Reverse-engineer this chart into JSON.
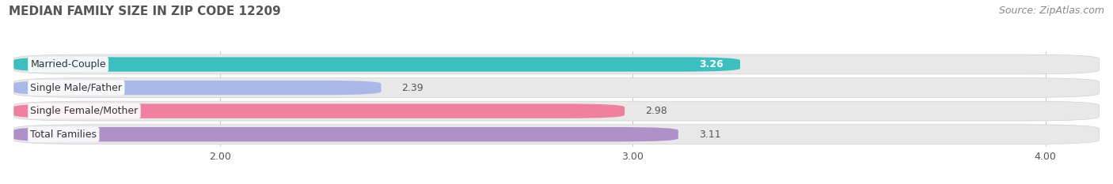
{
  "title": "MEDIAN FAMILY SIZE IN ZIP CODE 12209",
  "source": "Source: ZipAtlas.com",
  "categories": [
    "Married-Couple",
    "Single Male/Father",
    "Single Female/Mother",
    "Total Families"
  ],
  "values": [
    3.26,
    2.39,
    2.98,
    3.11
  ],
  "colors": [
    "#3dbfbf",
    "#aab8e8",
    "#f080a0",
    "#b090c8"
  ],
  "bar_bg_color": "#e8e8e8",
  "bar_border_color": "#d0d0d0",
  "xlim_min": 1.48,
  "xlim_max": 4.15,
  "xticks": [
    2.0,
    3.0,
    4.0
  ],
  "xtick_labels": [
    "2.00",
    "3.00",
    "4.00"
  ],
  "value_label_inside": [
    true,
    false,
    false,
    false
  ],
  "title_fontsize": 11,
  "source_fontsize": 9,
  "label_fontsize": 9,
  "value_fontsize": 9,
  "bar_height": 0.62,
  "background_color": "#ffffff",
  "grid_color": "#cccccc",
  "text_color": "#555555",
  "label_bg_color": "#ffffff"
}
